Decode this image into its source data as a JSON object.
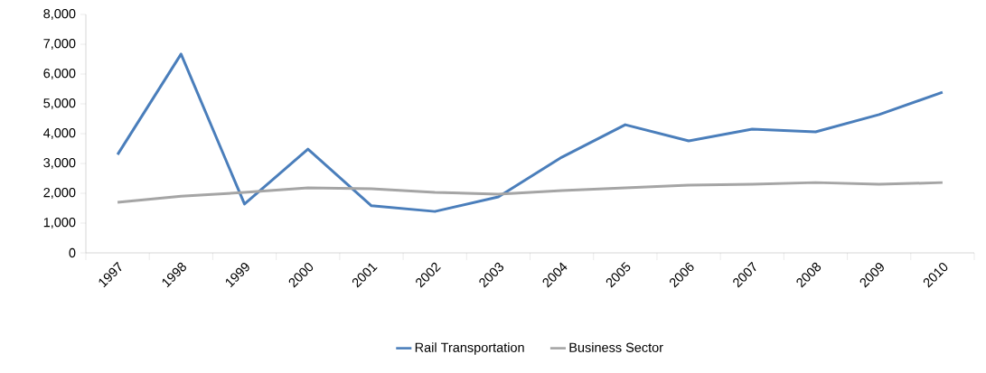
{
  "chart_data": {
    "type": "line",
    "categories": [
      "1997",
      "1998",
      "1999",
      "2000",
      "2001",
      "2002",
      "2003",
      "2004",
      "2005",
      "2006",
      "2007",
      "2008",
      "2009",
      "2010"
    ],
    "series": [
      {
        "name": "Rail Transportation",
        "color": "#4a7ebb",
        "values": [
          3300,
          6670,
          1640,
          3480,
          1580,
          1390,
          1880,
          3210,
          4300,
          3760,
          4150,
          4060,
          4640,
          5390
        ]
      },
      {
        "name": "Business Sector",
        "color": "#a5a5a5",
        "values": [
          1700,
          1900,
          2030,
          2180,
          2150,
          2030,
          1970,
          2090,
          2180,
          2270,
          2300,
          2360,
          2300,
          2360
        ]
      }
    ],
    "ylim": [
      0,
      8000
    ],
    "yticks": [
      0,
      {
        "value": 1000,
        "label": "1,000"
      },
      {
        "value": 2000,
        "label": "2,000"
      },
      {
        "value": 3000,
        "label": "3,000"
      },
      {
        "value": 4000,
        "label": "4,000"
      },
      {
        "value": 5000,
        "label": "5,000"
      },
      {
        "value": 6000,
        "label": "6,000"
      },
      {
        "value": 7000,
        "label": "7,000"
      },
      {
        "value": 8000,
        "label": "8,000"
      }
    ],
    "legend": "bottom",
    "marker": "none",
    "line_style": "solid",
    "grid": false
  }
}
